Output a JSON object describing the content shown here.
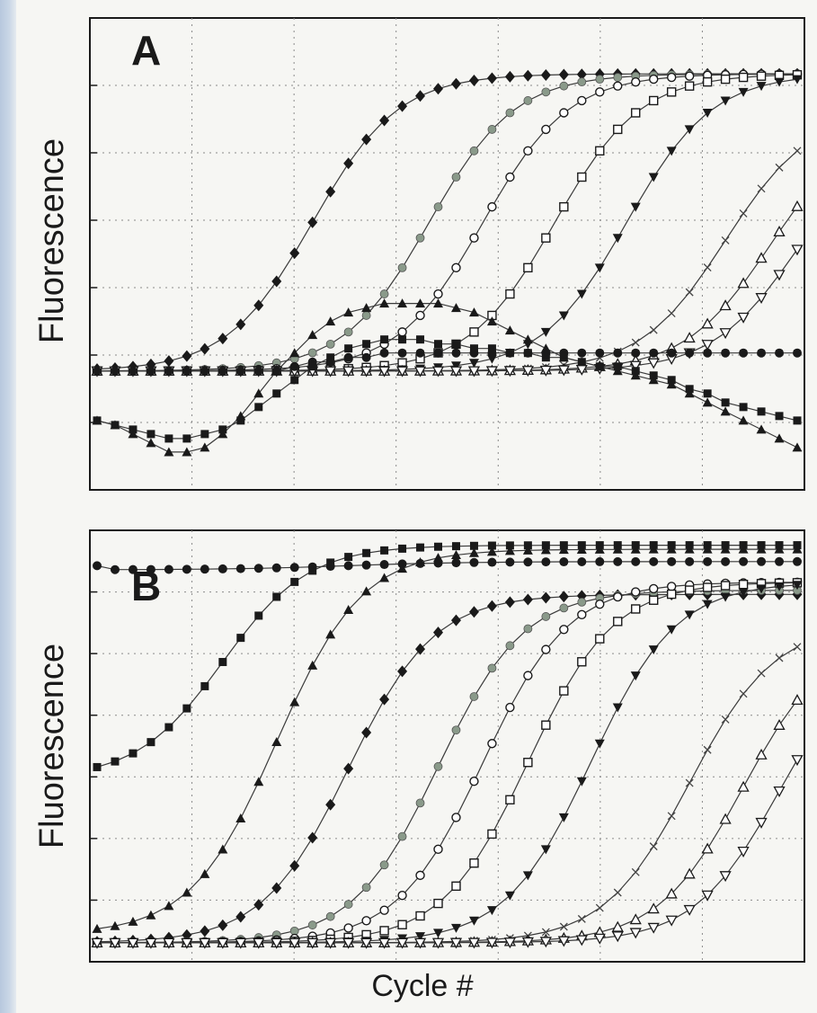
{
  "chart_data": [
    {
      "type": "line",
      "panel_label": "A",
      "ylabel": "Fluorescence",
      "xlabel": "",
      "grid": true,
      "legend": "none",
      "x": [
        1,
        2,
        3,
        4,
        5,
        6,
        7,
        8,
        9,
        10,
        11,
        12,
        13,
        14,
        15,
        16,
        17,
        18,
        19,
        20,
        21,
        22,
        23,
        24,
        25,
        26,
        27,
        28,
        29,
        30,
        31,
        32,
        33,
        34,
        35,
        36,
        37,
        38,
        39,
        40
      ],
      "ylim": [
        0,
        1
      ],
      "series": [
        {
          "marker": "diamond-filled",
          "baseline": 0.24,
          "top": 0.9,
          "mid": 13,
          "k": 0.42
        },
        {
          "marker": "circle-gray",
          "baseline": 0.24,
          "top": 0.9,
          "mid": 19.5,
          "k": 0.42
        },
        {
          "marker": "circle-open",
          "baseline": 0.24,
          "top": 0.9,
          "mid": 22.5,
          "k": 0.42
        },
        {
          "marker": "square-open",
          "baseline": 0.24,
          "top": 0.9,
          "mid": 26.5,
          "k": 0.42
        },
        {
          "marker": "triangle-down-filled",
          "baseline": 0.24,
          "top": 0.9,
          "mid": 30.5,
          "k": 0.42
        },
        {
          "marker": "x",
          "baseline": 0.24,
          "top": 0.82,
          "mid": 36,
          "k": 0.42
        },
        {
          "marker": "triangle-up-open",
          "baseline": 0.24,
          "top": 0.8,
          "mid": 38.5,
          "k": 0.42
        },
        {
          "marker": "triangle-down-open",
          "baseline": 0.24,
          "top": 0.78,
          "mid": 40,
          "k": 0.42
        },
        {
          "marker": "triangle-up-filled",
          "points": [
            0.13,
            0.12,
            0.1,
            0.08,
            0.06,
            0.06,
            0.07,
            0.1,
            0.14,
            0.19,
            0.24,
            0.28,
            0.32,
            0.35,
            0.37,
            0.38,
            0.39,
            0.39,
            0.39,
            0.39,
            0.38,
            0.37,
            0.35,
            0.33,
            0.31,
            0.29,
            0.27,
            0.26,
            0.25,
            0.24,
            0.23,
            0.22,
            0.21,
            0.19,
            0.17,
            0.15,
            0.13,
            0.11,
            0.09,
            0.07
          ]
        },
        {
          "marker": "square-filled",
          "points": [
            0.13,
            0.12,
            0.11,
            0.1,
            0.09,
            0.09,
            0.1,
            0.11,
            0.13,
            0.16,
            0.19,
            0.22,
            0.25,
            0.27,
            0.29,
            0.3,
            0.31,
            0.31,
            0.31,
            0.3,
            0.3,
            0.29,
            0.29,
            0.28,
            0.28,
            0.27,
            0.27,
            0.26,
            0.25,
            0.25,
            0.24,
            0.23,
            0.22,
            0.2,
            0.19,
            0.17,
            0.16,
            0.15,
            0.14,
            0.13
          ]
        },
        {
          "marker": "circle-filled",
          "points": [
            0.24,
            0.24,
            0.24,
            0.24,
            0.24,
            0.24,
            0.24,
            0.24,
            0.24,
            0.24,
            0.24,
            0.25,
            0.26,
            0.26,
            0.27,
            0.27,
            0.28,
            0.28,
            0.28,
            0.28,
            0.28,
            0.28,
            0.28,
            0.28,
            0.28,
            0.28,
            0.28,
            0.28,
            0.28,
            0.28,
            0.28,
            0.28,
            0.28,
            0.28,
            0.28,
            0.28,
            0.28,
            0.28,
            0.28,
            0.28
          ]
        }
      ]
    },
    {
      "type": "line",
      "panel_label": "B",
      "ylabel": "Fluorescence",
      "xlabel": "Cycle #",
      "grid": true,
      "legend": "none",
      "x": [
        1,
        2,
        3,
        4,
        5,
        6,
        7,
        8,
        9,
        10,
        11,
        12,
        13,
        14,
        15,
        16,
        17,
        18,
        19,
        20,
        21,
        22,
        23,
        24,
        25,
        26,
        27,
        28,
        29,
        30,
        31,
        32,
        33,
        34,
        35,
        36,
        37,
        38,
        39,
        40
      ],
      "ylim": [
        0,
        1
      ],
      "series": [
        {
          "marker": "circle-filled",
          "baseline": 0.93,
          "top": 0.95,
          "mid": 15,
          "k": 0.3,
          "start": 0.94
        },
        {
          "marker": "square-filled",
          "baseline": 0.42,
          "top": 0.99,
          "mid": 8,
          "k": 0.42
        },
        {
          "marker": "triangle-up-filled",
          "baseline": 0.04,
          "top": 0.98,
          "mid": 11,
          "k": 0.42
        },
        {
          "marker": "diamond-filled",
          "baseline": 0.02,
          "top": 0.87,
          "mid": 15,
          "k": 0.42
        },
        {
          "marker": "circle-gray",
          "baseline": 0.02,
          "top": 0.88,
          "mid": 20,
          "k": 0.42
        },
        {
          "marker": "circle-open",
          "baseline": 0.02,
          "top": 0.9,
          "mid": 22.5,
          "k": 0.42
        },
        {
          "marker": "square-open",
          "baseline": 0.02,
          "top": 0.9,
          "mid": 25,
          "k": 0.42
        },
        {
          "marker": "triangle-down-filled",
          "baseline": 0.02,
          "top": 0.9,
          "mid": 28.5,
          "k": 0.42
        },
        {
          "marker": "x",
          "baseline": 0.02,
          "top": 0.8,
          "mid": 34,
          "k": 0.42
        },
        {
          "marker": "triangle-up-open",
          "baseline": 0.02,
          "top": 0.78,
          "mid": 37,
          "k": 0.42
        },
        {
          "marker": "triangle-down-open",
          "baseline": 0.02,
          "top": 0.76,
          "mid": 39,
          "k": 0.42
        }
      ]
    }
  ],
  "colors": {
    "ink": "#1a1a1a",
    "line": "#3a3a3a",
    "grid": "#8a8a8a",
    "gray_marker": "#8a9a8a",
    "paper": "#f6f6f3",
    "page_edge": "#b7c8de"
  }
}
